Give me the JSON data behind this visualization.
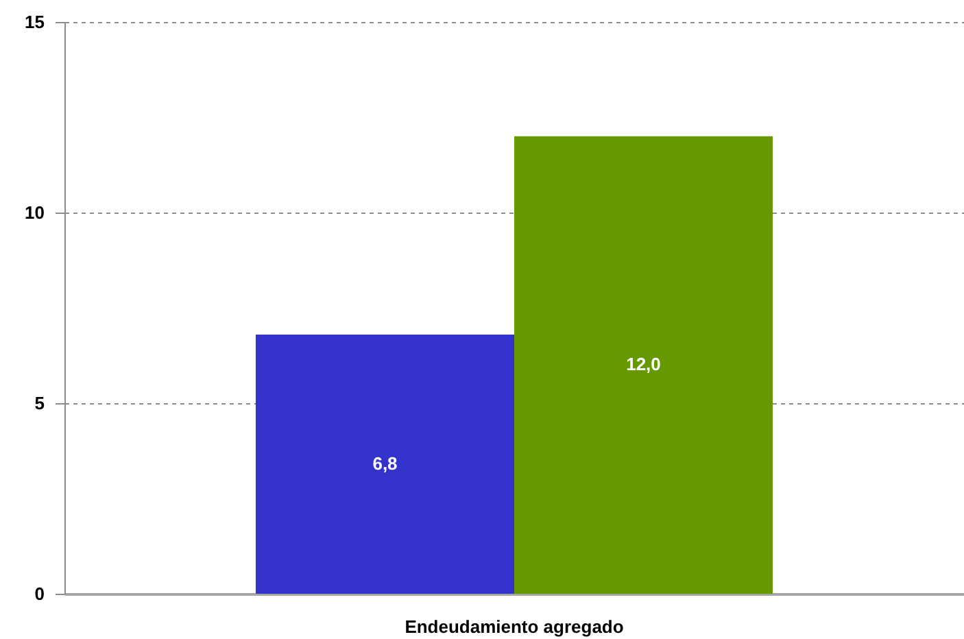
{
  "chart_data": {
    "type": "bar",
    "categories": [
      "Endeudamiento agregado"
    ],
    "series": [
      {
        "color": "#3333cc",
        "values": [
          6.8
        ],
        "value_labels": [
          "6,8"
        ]
      },
      {
        "color": "#669900",
        "values": [
          12.0
        ],
        "value_labels": [
          "12,0"
        ]
      }
    ],
    "ylim": [
      0,
      15
    ],
    "yticks": [
      0,
      5,
      10,
      15
    ],
    "grid": "y"
  }
}
